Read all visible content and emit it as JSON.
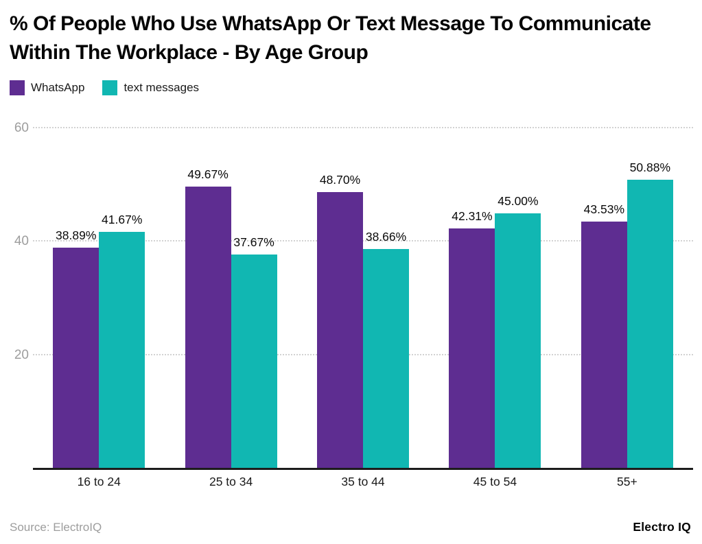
{
  "title": "% Of People Who Use WhatsApp Or Text Message To Communicate Within The Workplace - By Age Group",
  "legend": [
    {
      "label": "WhatsApp",
      "color": "#5E2D91",
      "swatch_icon": "legend-swatch-square"
    },
    {
      "label": "text messages",
      "color": "#11B7B2",
      "swatch_icon": "legend-swatch-square"
    }
  ],
  "footer": {
    "source": "Source: ElectroIQ",
    "brand": "Electro IQ"
  },
  "colors": {
    "whatsapp_bar": "#5E2D91",
    "text_messages_bar": "#11B7B2",
    "gridline": "#d2d2d2",
    "axis_line": "#1c1c1c",
    "ytick_text": "#9d9d9d"
  },
  "chart_data": {
    "type": "bar",
    "title": "% Of People Who Use WhatsApp Or Text Message To Communicate Within The Workplace - By Age Group",
    "categories": [
      "16 to 24",
      "25 to 34",
      "35 to 44",
      "45 to 54",
      "55+"
    ],
    "series": [
      {
        "name": "WhatsApp",
        "color": "#5E2D91",
        "values": [
          38.89,
          49.67,
          48.7,
          42.31,
          43.53
        ],
        "labels": [
          "38.89%",
          "49.67%",
          "48.70%",
          "42.31%",
          "43.53%"
        ]
      },
      {
        "name": "text messages",
        "color": "#11B7B2",
        "values": [
          41.67,
          37.67,
          38.66,
          45.0,
          50.88
        ],
        "labels": [
          "41.67%",
          "37.67%",
          "38.66%",
          "45.00%",
          "50.88%"
        ]
      }
    ],
    "xlabel": "",
    "ylabel": "",
    "yticks": [
      20,
      40,
      60
    ],
    "ylim": [
      0,
      62
    ],
    "grid": "horizontal-dotted",
    "legend_position": "top-left",
    "value_label_format": "0.00%"
  }
}
